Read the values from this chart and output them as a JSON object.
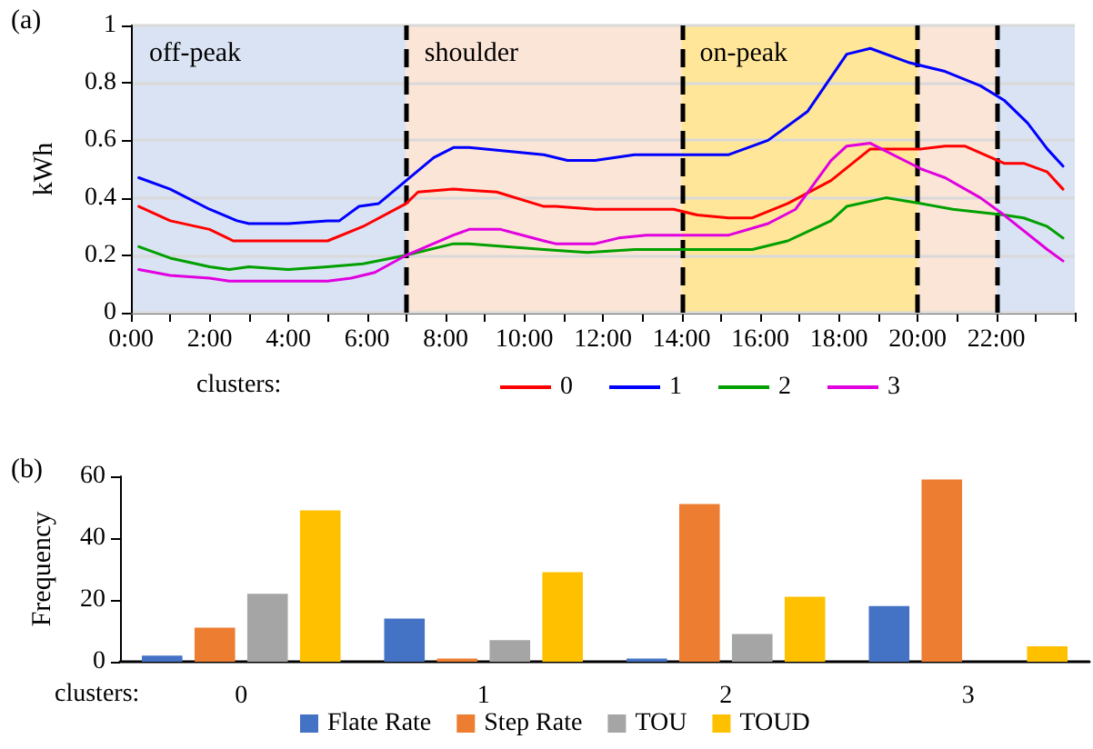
{
  "chart_data": [
    {
      "type": "line",
      "xlabel": null,
      "ylabel": "kWh",
      "legend_title": "clusters:",
      "legend": "bottom",
      "grid": "y",
      "marker": "none",
      "line_style": "solid",
      "annotations": [
        "(a)"
      ],
      "xlim": [
        0,
        24
      ],
      "xticks": [
        {
          "value": 0,
          "label": "0:00"
        },
        {
          "value": 1,
          "label": null
        },
        {
          "value": 2,
          "label": "2:00"
        },
        {
          "value": 3,
          "label": null
        },
        {
          "value": 4,
          "label": "4:00"
        },
        {
          "value": 5,
          "label": null
        },
        {
          "value": 6,
          "label": "6:00"
        },
        {
          "value": 7,
          "label": null
        },
        {
          "value": 8,
          "label": "8:00"
        },
        {
          "value": 9,
          "label": null
        },
        {
          "value": 10,
          "label": "10:00"
        },
        {
          "value": 11,
          "label": null
        },
        {
          "value": 12,
          "label": "12:00"
        },
        {
          "value": 13,
          "label": null
        },
        {
          "value": 14,
          "label": "14:00"
        },
        {
          "value": 15,
          "label": null
        },
        {
          "value": 16,
          "label": "16:00"
        },
        {
          "value": 17,
          "label": null
        },
        {
          "value": 18,
          "label": "18:00"
        },
        {
          "value": 19,
          "label": null
        },
        {
          "value": 20,
          "label": "20:00"
        },
        {
          "value": 21,
          "label": null
        },
        {
          "value": 22,
          "label": "22:00"
        },
        {
          "value": 23,
          "label": null
        },
        {
          "value": 24,
          "label": null
        }
      ],
      "ylim": [
        0,
        1
      ],
      "yticks": [
        0,
        0.2,
        0.4,
        0.6,
        0.8,
        1
      ],
      "bands": [
        {
          "axis": "x",
          "from": 0,
          "to": 7,
          "label": "off-peak",
          "color": "#dae3f3"
        },
        {
          "axis": "x",
          "from": 7,
          "to": 14,
          "label": "shoulder",
          "color": "#fbe5d6"
        },
        {
          "axis": "x",
          "from": 14,
          "to": 20,
          "label": "on-peak",
          "color": "#ffe699"
        },
        {
          "axis": "x",
          "from": 20,
          "to": 22,
          "label": null,
          "color": "#fbe5d6"
        },
        {
          "axis": "x",
          "from": 22,
          "to": 24,
          "label": null,
          "color": "#dae3f3"
        }
      ],
      "ref_lines": [
        {
          "axis": "x",
          "value": 7,
          "label": null,
          "color": "#000000",
          "line_style": "dashed"
        },
        {
          "axis": "x",
          "value": 14,
          "label": null,
          "color": "#000000",
          "line_style": "dashed"
        },
        {
          "axis": "x",
          "value": 20,
          "label": null,
          "color": "#000000",
          "line_style": "dashed"
        },
        {
          "axis": "x",
          "value": 22,
          "label": null,
          "color": "#000000",
          "line_style": "dashed"
        }
      ],
      "series": [
        {
          "name": "0",
          "color": "#ff0000",
          "x": [
            0.2,
            1,
            2,
            2.6,
            5,
            5.9,
            7,
            7.3,
            8.2,
            9.3,
            10.5,
            10.8,
            11.8,
            13.8,
            14.4,
            15.2,
            15.8,
            16.7,
            17.8,
            18.8,
            20.1,
            20.7,
            21.2,
            22.2,
            22.7,
            23.3,
            23.7
          ],
          "values": [
            0.37,
            0.32,
            0.29,
            0.25,
            0.25,
            0.3,
            0.38,
            0.42,
            0.43,
            0.42,
            0.37,
            0.37,
            0.36,
            0.36,
            0.34,
            0.33,
            0.33,
            0.38,
            0.46,
            0.57,
            0.57,
            0.58,
            0.58,
            0.52,
            0.52,
            0.49,
            0.43
          ]
        },
        {
          "name": "1",
          "color": "#0000ff",
          "x": [
            0.2,
            1,
            2,
            2.7,
            3,
            4,
            5,
            5.3,
            5.8,
            6.3,
            7,
            7.7,
            8.2,
            8.6,
            10.5,
            11.1,
            11.8,
            12.8,
            14,
            15.2,
            16.2,
            17.2,
            18.2,
            18.8,
            19.8,
            20.7,
            21.6,
            22.2,
            22.8,
            23.3,
            23.7
          ],
          "values": [
            0.47,
            0.43,
            0.36,
            0.32,
            0.31,
            0.31,
            0.32,
            0.32,
            0.37,
            0.38,
            0.46,
            0.54,
            0.575,
            0.575,
            0.55,
            0.53,
            0.53,
            0.55,
            0.55,
            0.55,
            0.6,
            0.7,
            0.9,
            0.92,
            0.87,
            0.84,
            0.79,
            0.74,
            0.66,
            0.57,
            0.51
          ]
        },
        {
          "name": "2",
          "color": "#00a000",
          "x": [
            0.2,
            1,
            2,
            2.5,
            3,
            4,
            5,
            5.9,
            7,
            8.2,
            8.6,
            10.5,
            11.6,
            12.8,
            15.8,
            16.7,
            17.8,
            18.2,
            19.2,
            20.1,
            20.9,
            22.2,
            22.7,
            23.3,
            23.7
          ],
          "values": [
            0.23,
            0.19,
            0.16,
            0.15,
            0.16,
            0.15,
            0.16,
            0.17,
            0.2,
            0.24,
            0.24,
            0.22,
            0.21,
            0.22,
            0.22,
            0.25,
            0.32,
            0.37,
            0.4,
            0.38,
            0.36,
            0.34,
            0.33,
            0.3,
            0.26
          ]
        },
        {
          "name": "3",
          "color": "#e000e0",
          "x": [
            0.2,
            1,
            2,
            2.5,
            5,
            5.6,
            6.2,
            7,
            8.2,
            8.6,
            9.4,
            10.5,
            10.8,
            11.8,
            12.4,
            13.1,
            15.2,
            16.2,
            16.9,
            17.8,
            18.2,
            18.8,
            20.1,
            20.7,
            21.6,
            22.2,
            23.3,
            23.7
          ],
          "values": [
            0.15,
            0.13,
            0.12,
            0.11,
            0.11,
            0.12,
            0.14,
            0.2,
            0.27,
            0.29,
            0.29,
            0.25,
            0.24,
            0.24,
            0.26,
            0.27,
            0.27,
            0.31,
            0.36,
            0.53,
            0.58,
            0.59,
            0.5,
            0.47,
            0.4,
            0.34,
            0.22,
            0.18
          ]
        }
      ]
    },
    {
      "type": "bar",
      "xlabel": "clusters:",
      "ylabel": "Frequency",
      "legend": "bottom",
      "grid": false,
      "annotations": [
        "(b)"
      ],
      "categories": [
        "0",
        "1",
        "2",
        "3"
      ],
      "ylim": [
        0,
        60
      ],
      "yticks": [
        0,
        20,
        40,
        60
      ],
      "series": [
        {
          "name": "Flate Rate",
          "color": "#4472c4",
          "values": [
            2,
            14,
            1,
            18
          ]
        },
        {
          "name": "Step Rate",
          "color": "#ed7d31",
          "values": [
            11,
            1,
            51,
            59
          ]
        },
        {
          "name": "TOU",
          "color": "#a5a5a5",
          "values": [
            22,
            7,
            9,
            0
          ]
        },
        {
          "name": "TOUD",
          "color": "#ffc000",
          "values": [
            49,
            29,
            21,
            5
          ]
        }
      ]
    }
  ]
}
